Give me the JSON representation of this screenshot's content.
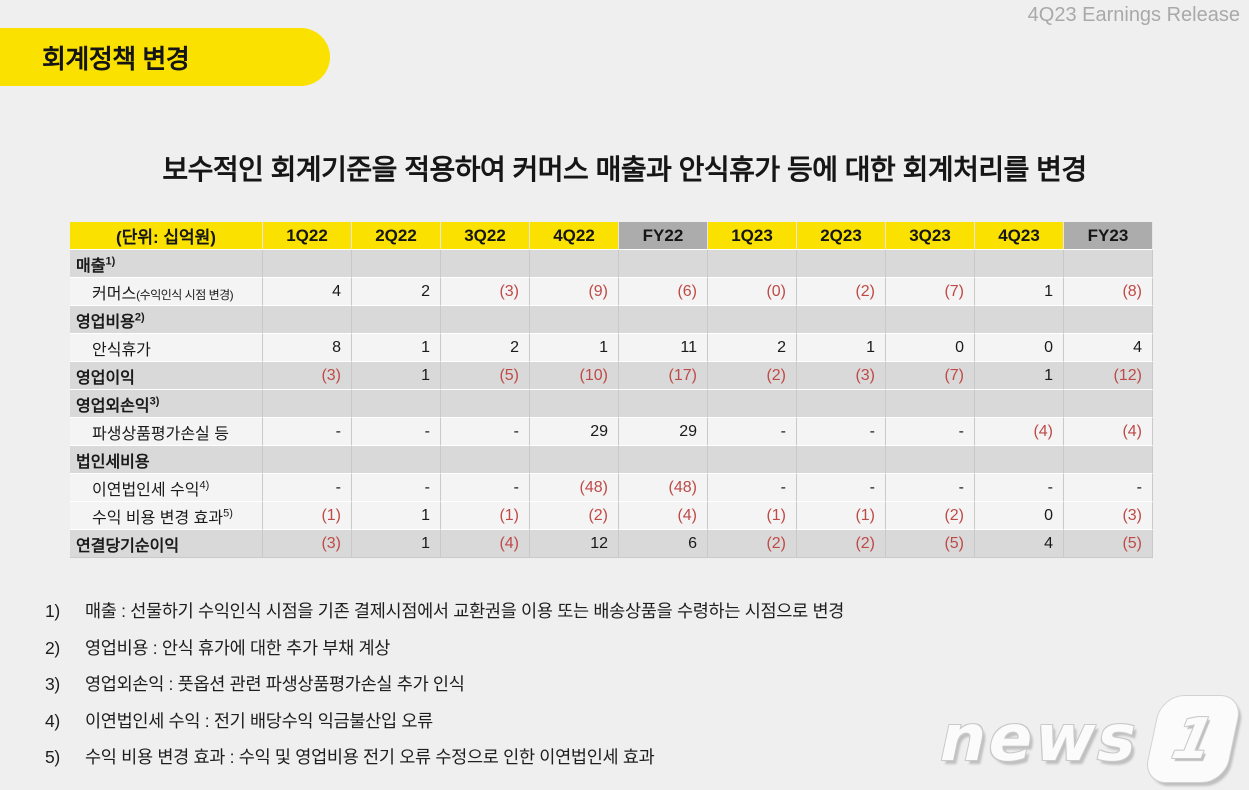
{
  "header": {
    "badge_label": "회계정책 변경",
    "release_label": "4Q23 Earnings Release"
  },
  "title": "보수적인 회계기준을 적용하여 커머스 매출과 안식휴가 등에 대한 회계처리를 변경",
  "table": {
    "unit_label": "(단위: 십억원)",
    "columns": [
      {
        "label": "1Q22",
        "type": "quarter"
      },
      {
        "label": "2Q22",
        "type": "quarter"
      },
      {
        "label": "3Q22",
        "type": "quarter"
      },
      {
        "label": "4Q22",
        "type": "quarter"
      },
      {
        "label": "FY22",
        "type": "year"
      },
      {
        "label": "1Q23",
        "type": "quarter"
      },
      {
        "label": "2Q23",
        "type": "quarter"
      },
      {
        "label": "3Q23",
        "type": "quarter"
      },
      {
        "label": "4Q23",
        "type": "quarter"
      },
      {
        "label": "FY23",
        "type": "year"
      }
    ],
    "rows": [
      {
        "label": "매출",
        "sup": "1)",
        "style": "section",
        "values": [
          "",
          "",
          "",
          "",
          "",
          "",
          "",
          "",
          "",
          ""
        ]
      },
      {
        "label": "커머스",
        "note": "(수익인식 시점 변경)",
        "style": "detail",
        "values": [
          "4",
          "2",
          "(3)",
          "(9)",
          "(6)",
          "(0)",
          "(2)",
          "(7)",
          "1",
          "(8)"
        ]
      },
      {
        "label": "영업비용",
        "sup": "2)",
        "style": "section",
        "values": [
          "",
          "",
          "",
          "",
          "",
          "",
          "",
          "",
          "",
          ""
        ]
      },
      {
        "label": "안식휴가",
        "style": "detail",
        "values": [
          "8",
          "1",
          "2",
          "1",
          "11",
          "2",
          "1",
          "0",
          "0",
          "4"
        ]
      },
      {
        "label": "영업이익",
        "style": "total",
        "values": [
          "(3)",
          "1",
          "(5)",
          "(10)",
          "(17)",
          "(2)",
          "(3)",
          "(7)",
          "1",
          "(12)"
        ]
      },
      {
        "label": "영업외손익",
        "sup": "3)",
        "style": "section",
        "values": [
          "",
          "",
          "",
          "",
          "",
          "",
          "",
          "",
          "",
          ""
        ]
      },
      {
        "label": "파생상품평가손실 등",
        "style": "detail",
        "values": [
          "-",
          "-",
          "-",
          "29",
          "29",
          "-",
          "-",
          "-",
          "(4)",
          "(4)"
        ]
      },
      {
        "label": "법인세비용",
        "style": "section",
        "values": [
          "",
          "",
          "",
          "",
          "",
          "",
          "",
          "",
          "",
          ""
        ]
      },
      {
        "label": "이연법인세 수익",
        "sup": "4)",
        "style": "detail",
        "values": [
          "-",
          "-",
          "-",
          "(48)",
          "(48)",
          "-",
          "-",
          "-",
          "-",
          "-"
        ]
      },
      {
        "label": "수익 비용 변경 효과",
        "sup": "5)",
        "style": "detail",
        "values": [
          "(1)",
          "1",
          "(1)",
          "(2)",
          "(4)",
          "(1)",
          "(1)",
          "(2)",
          "0",
          "(3)"
        ]
      },
      {
        "label": "연결당기순이익",
        "style": "total",
        "values": [
          "(3)",
          "1",
          "(4)",
          "12",
          "6",
          "(2)",
          "(2)",
          "(5)",
          "4",
          "(5)"
        ]
      }
    ]
  },
  "footnotes": [
    {
      "num": "1)",
      "text": "매출 : 선물하기 수익인식 시점을 기존 결제시점에서 교환권을 이용 또는 배송상품을 수령하는 시점으로 변경"
    },
    {
      "num": "2)",
      "text": "영업비용 : 안식 휴가에 대한 추가 부채 계상"
    },
    {
      "num": "3)",
      "text": "영업외손익 :  풋옵션 관련 파생상품평가손실 추가 인식"
    },
    {
      "num": "4)",
      "text": "이연법인세 수익 : 전기 배당수익 익금불산입 오류"
    },
    {
      "num": "5)",
      "text": "수익 비용 변경 효과 : 수익 및 영업비용 전기 오류 수정으로 인한 이연법인세 효과"
    }
  ],
  "logo": {
    "text": "news",
    "numeral": "1"
  },
  "colors": {
    "accent_yellow": "#fae100",
    "year_header_gray": "#acacac",
    "section_row_gray": "#d9d9d9",
    "detail_row_bg": "#f4f4f4",
    "negative_red": "#be4a47",
    "background": "#efefef"
  }
}
